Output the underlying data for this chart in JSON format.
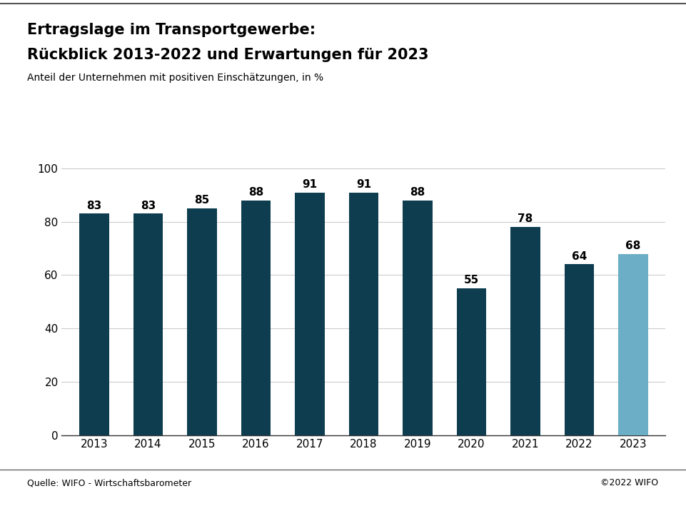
{
  "title_line1": "Ertragslage im Transportgewerbe:",
  "title_line2": "Rückblick 2013-2022 und Erwartungen für 2023",
  "subtitle": "Anteil der Unternehmen mit positiven Einschätzungen, in %",
  "source_left": "Quelle: WIFO - Wirtschaftsbarometer",
  "source_right": "©2022 WIFO",
  "years": [
    2013,
    2014,
    2015,
    2016,
    2017,
    2018,
    2019,
    2020,
    2021,
    2022,
    2023
  ],
  "values": [
    83,
    83,
    85,
    88,
    91,
    91,
    88,
    55,
    78,
    64,
    68
  ],
  "bar_colors": [
    "#0d3d4f",
    "#0d3d4f",
    "#0d3d4f",
    "#0d3d4f",
    "#0d3d4f",
    "#0d3d4f",
    "#0d3d4f",
    "#0d3d4f",
    "#0d3d4f",
    "#0d3d4f",
    "#6baec6"
  ],
  "ylim": [
    0,
    110
  ],
  "yticks": [
    0,
    20,
    40,
    60,
    80,
    100
  ],
  "background_color": "#ffffff",
  "title_fontsize": 15,
  "subtitle_fontsize": 10,
  "bar_label_fontsize": 11,
  "axis_label_fontsize": 11,
  "source_fontsize": 9,
  "line_color": "#555555",
  "grid_color": "#cccccc",
  "bar_width": 0.55
}
